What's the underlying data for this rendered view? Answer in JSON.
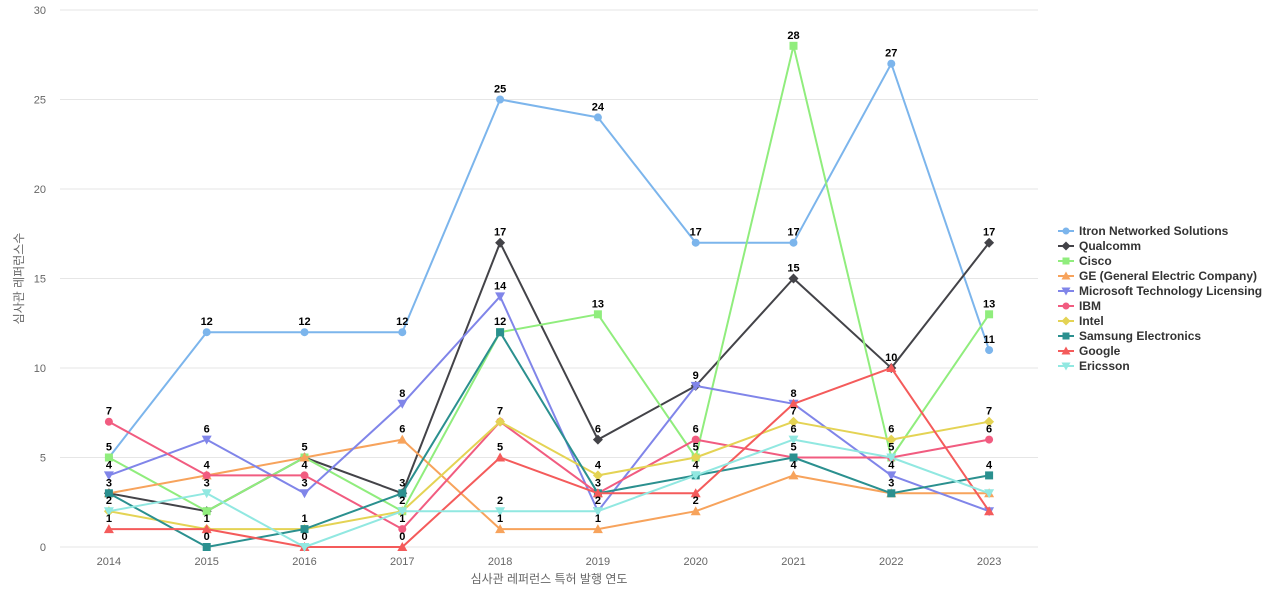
{
  "chart_data": {
    "type": "line",
    "title": "",
    "xlabel": "심사관 레퍼런스 특허 발행 연도",
    "ylabel": "심사관 레퍼런스수",
    "x": [
      "2014",
      "2015",
      "2016",
      "2017",
      "2018",
      "2019",
      "2020",
      "2021",
      "2022",
      "2023"
    ],
    "ylim": [
      0,
      30
    ],
    "yticks": [
      "0",
      "5",
      "10",
      "15",
      "20",
      "25",
      "30"
    ],
    "grid": "horizontal",
    "legend_position": "right",
    "series": [
      {
        "name": "Itron Networked Solutions",
        "color": "#7cb5ec",
        "marker": "circle",
        "values": [
          5,
          12,
          12,
          12,
          25,
          24,
          17,
          17,
          27,
          11
        ],
        "labels": [
          "",
          "12",
          "12",
          "12",
          "25",
          "24",
          "17",
          "17",
          "27",
          "11"
        ]
      },
      {
        "name": "Qualcomm",
        "color": "#434348",
        "marker": "diamond",
        "values": [
          3,
          2,
          5,
          3,
          17,
          6,
          9,
          15,
          10,
          17
        ],
        "labels": [
          "3",
          "",
          "",
          "3",
          "17",
          "6",
          "9",
          "15",
          "10",
          "17"
        ]
      },
      {
        "name": "Cisco",
        "color": "#90ed7d",
        "marker": "square",
        "values": [
          5,
          2,
          5,
          2,
          12,
          13,
          5,
          28,
          5,
          13
        ],
        "labels": [
          "5",
          "",
          "5",
          "",
          "",
          "13",
          "5",
          "28",
          "5",
          "13"
        ]
      },
      {
        "name": "GE (General Electric Company)",
        "color": "#f7a35c",
        "marker": "triangle",
        "values": [
          3,
          4,
          5,
          6,
          1,
          1,
          2,
          4,
          3,
          3
        ],
        "labels": [
          "",
          "",
          "",
          "6",
          "1",
          "1",
          "2",
          "4",
          "",
          ""
        ]
      },
      {
        "name": "Microsoft Technology Licensing",
        "color": "#8085e9",
        "marker": "triangle-down",
        "values": [
          4,
          6,
          3,
          8,
          14,
          2,
          9,
          8,
          4,
          2
        ],
        "labels": [
          "4",
          "6",
          "3",
          "8",
          "14",
          "",
          "",
          "8",
          "4",
          ""
        ]
      },
      {
        "name": "IBM",
        "color": "#f15c80",
        "marker": "circle",
        "values": [
          7,
          4,
          4,
          1,
          7,
          3,
          6,
          5,
          5,
          6
        ],
        "labels": [
          "7",
          "4",
          "4",
          "1",
          "",
          "",
          "6",
          "",
          "",
          "6"
        ]
      },
      {
        "name": "Intel",
        "color": "#e4d354",
        "marker": "diamond",
        "values": [
          2,
          1,
          1,
          2,
          7,
          4,
          5,
          7,
          6,
          7
        ],
        "labels": [
          "",
          "1",
          "",
          "",
          "7",
          "4",
          "",
          "7",
          "6",
          "7"
        ]
      },
      {
        "name": "Samsung Electronics",
        "color": "#2b908f",
        "marker": "square",
        "values": [
          3,
          0,
          1,
          3,
          12,
          3,
          4,
          5,
          3,
          4
        ],
        "labels": [
          "",
          "0",
          "1",
          "",
          "12",
          "3",
          "4",
          "5",
          "3",
          "4"
        ]
      },
      {
        "name": "Google",
        "color": "#f45b5b",
        "marker": "triangle",
        "values": [
          1,
          1,
          0,
          0,
          5,
          3,
          3,
          8,
          10,
          2
        ],
        "labels": [
          "1",
          "",
          "",
          "0",
          "5",
          "",
          "",
          "",
          "",
          ""
        ]
      },
      {
        "name": "Ericsson",
        "color": "#91e8e1",
        "marker": "triangle-down",
        "values": [
          2,
          3,
          0,
          2,
          2,
          2,
          4,
          6,
          5,
          3
        ],
        "labels": [
          "2",
          "3",
          "0",
          "2",
          "2",
          "2",
          "",
          "6",
          "",
          ""
        ]
      }
    ]
  }
}
